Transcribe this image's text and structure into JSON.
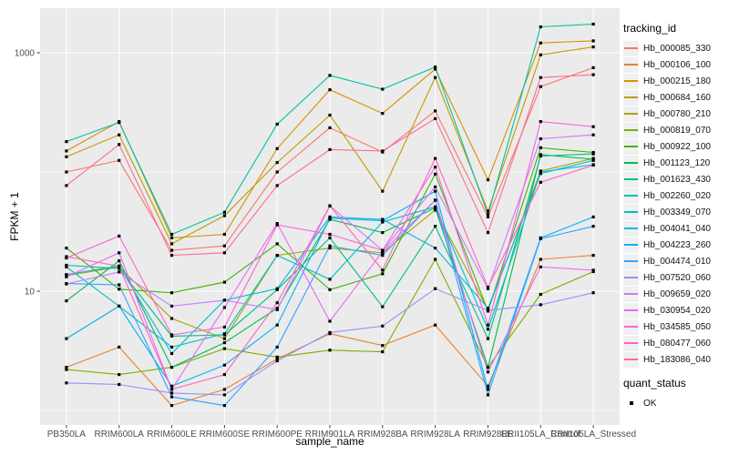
{
  "chart_data": {
    "type": "line",
    "title": "",
    "xlabel": "sample_name",
    "ylabel": "FPKM + 1",
    "y_scale": "log10",
    "ylim": [
      0.75,
      2350
    ],
    "y_ticks": [
      10,
      1000
    ],
    "y_minor_ticks": [
      1,
      100
    ],
    "grid": true,
    "legend_position": "right",
    "panel_bg": "#EBEBEB",
    "grid_color": "#FFFFFF",
    "tick_label_color": "#4D4D4D",
    "point_color": "#000000",
    "categories": [
      "PB350LA",
      "RRIM600LA",
      "RRIM600LE",
      "RRIM600SE",
      "RRIM600PE",
      "RRIM901LA",
      "RRIM928BA",
      "RRIM928LA",
      "RRIM928LE",
      "RRII105LA_Control",
      "RRII105LA_Stressed"
    ],
    "series": [
      {
        "name": "Hb_000085_330",
        "color": "#F8766D",
        "values": [
          100,
          125,
          22,
          24,
          100,
          235,
          147,
          325,
          42,
          520,
          750
        ]
      },
      {
        "name": "Hb_000106_100",
        "color": "#E8812E",
        "values": [
          2.3,
          3.4,
          1.1,
          1.5,
          2.7,
          4.4,
          3.5,
          5.2,
          1.6,
          18.5,
          20
        ]
      },
      {
        "name": "Hb_000215_180",
        "color": "#D89000",
        "values": [
          150,
          265,
          28,
          30,
          157,
          490,
          310,
          730,
          86,
          1210,
          1260
        ]
      },
      {
        "name": "Hb_000684_160",
        "color": "#C09B00",
        "values": [
          134,
          205,
          25,
          43,
          120,
          300,
          69,
          620,
          47,
          960,
          1120
        ]
      },
      {
        "name": "Hb_000780_210",
        "color": "#A3A500",
        "values": [
          13.5,
          16,
          5.9,
          4.0,
          20,
          23,
          21,
          48,
          7.0,
          102,
          130
        ]
      },
      {
        "name": "Hb_000819_070",
        "color": "#7CAE00",
        "values": [
          2.2,
          2.0,
          2.3,
          3.3,
          2.8,
          3.2,
          3.1,
          18.5,
          2.3,
          9.4,
          14.6
        ]
      },
      {
        "name": "Hb_000922_100",
        "color": "#39B600",
        "values": [
          23,
          10.4,
          9.7,
          11.9,
          25,
          10.3,
          14,
          96,
          6.8,
          160,
          146
        ]
      },
      {
        "name": "Hb_001123_120",
        "color": "#00BB4E",
        "values": [
          8.3,
          18,
          2.3,
          3.7,
          7.2,
          40,
          31,
          50,
          2.3,
          140,
          128
        ]
      },
      {
        "name": "Hb_001623_430",
        "color": "#00BF7D",
        "values": [
          16.5,
          15.5,
          4.2,
          4.3,
          10.3,
          28,
          7.4,
          35,
          4.0,
          136,
          142
        ]
      },
      {
        "name": "Hb_002260_020",
        "color": "#00C1A3",
        "values": [
          180,
          260,
          30,
          46,
          252,
          645,
          495,
          760,
          44,
          1650,
          1740
        ]
      },
      {
        "name": "Hb_003349_070",
        "color": "#00BFC4",
        "values": [
          16,
          7.5,
          3.4,
          4.4,
          20,
          12.6,
          38,
          51,
          4.8,
          100,
          115
        ]
      },
      {
        "name": "Hb_004041_040",
        "color": "#00BAE0",
        "values": [
          13.8,
          16.3,
          3.0,
          8.4,
          10.5,
          42,
          40,
          23,
          7.2,
          97,
          125
        ]
      },
      {
        "name": "Hb_004223_260",
        "color": "#00B0F6",
        "values": [
          4.0,
          7.5,
          1.6,
          2.4,
          5.2,
          41,
          39,
          69,
          1.5,
          28,
          42
        ]
      },
      {
        "name": "Hb_004474_010",
        "color": "#35A2FF",
        "values": [
          11.6,
          11.3,
          1.3,
          1.1,
          3.4,
          24,
          20,
          58,
          1.35,
          27.5,
          35
        ]
      },
      {
        "name": "Hb_007520_060",
        "color": "#9590FF",
        "values": [
          1.7,
          1.65,
          1.4,
          1.35,
          2.6,
          4.5,
          5.1,
          10.5,
          6.9,
          7.7,
          9.7
        ]
      },
      {
        "name": "Hb_009659_020",
        "color": "#C77CFF",
        "values": [
          11.5,
          14.5,
          7.5,
          8.4,
          7.0,
          52,
          22,
          75,
          10.5,
          190,
          205
        ]
      },
      {
        "name": "Hb_030954_020",
        "color": "#E76BF3",
        "values": [
          13.2,
          21,
          1.5,
          7.3,
          37,
          5.6,
          21.5,
          58,
          2.1,
          16,
          15
        ]
      },
      {
        "name": "Hb_034585_050",
        "color": "#FA62DB",
        "values": [
          19,
          29,
          4.3,
          5.0,
          36,
          30,
          22,
          110,
          5.2,
          265,
          240
        ]
      },
      {
        "name": "Hb_080477_060",
        "color": "#FF62BC",
        "values": [
          19.5,
          16.2,
          1.5,
          2.0,
          8.0,
          52,
          15,
          130,
          10.8,
          82,
          114
        ]
      },
      {
        "name": "Hb_183086_040",
        "color": "#FF6A98",
        "values": [
          77,
          170,
          20,
          21,
          77,
          154,
          150,
          280,
          31,
          620,
          655
        ]
      }
    ]
  },
  "legend": {
    "tracking_title": "tracking_id",
    "quant_title": "quant_status",
    "quant_items": [
      {
        "label": "OK"
      }
    ]
  }
}
